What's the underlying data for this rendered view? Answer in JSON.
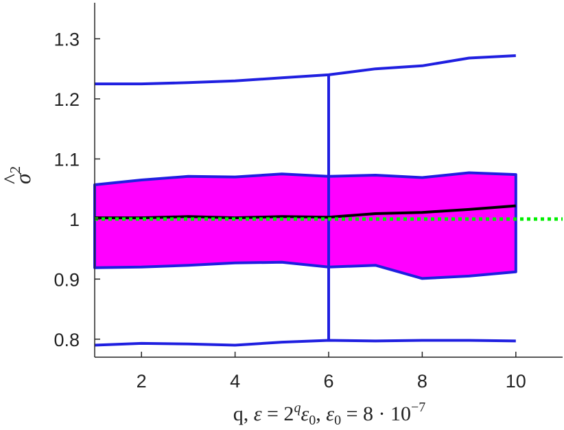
{
  "chart_data": {
    "type": "line",
    "title": "",
    "xlabel": "q, ε = 2^q ε0, ε0 = 8 · 10^-7",
    "xlabel_parts": {
      "pre": "q, ",
      "eps1": "ε",
      "eq1": " = 2",
      "q_sup": "q",
      "eps2": "ε",
      "sub0a": "0",
      "comma": ", ",
      "eps3": "ε",
      "sub0b": "0",
      "eq2": " = 8 · 10",
      "exp": "−7"
    },
    "ylabel": "σ̂²",
    "ylabel_parts": {
      "sigma": "σ",
      "hat": "^",
      "sup": "2"
    },
    "xlim": [
      1,
      11
    ],
    "ylim": [
      0.77,
      1.36
    ],
    "xticks": [
      2,
      4,
      6,
      8,
      10
    ],
    "xtick_labels": [
      "2",
      "4",
      "6",
      "8",
      "10"
    ],
    "yticks": [
      0.8,
      0.9,
      1.0,
      1.1,
      1.2,
      1.3
    ],
    "ytick_labels": [
      "0.8",
      "0.9",
      "1",
      "1.1",
      "1.2",
      "1.3"
    ],
    "grid": false,
    "x": [
      1,
      2,
      3,
      4,
      5,
      6,
      7,
      8,
      9,
      10
    ],
    "series": [
      {
        "role": "max",
        "color": "#1f1fe0",
        "values": [
          1.225,
          1.225,
          1.227,
          1.23,
          1.235,
          1.24,
          1.25,
          1.255,
          1.268,
          1.272
        ]
      },
      {
        "role": "upper_band",
        "color": "#1f1fe0",
        "values": [
          1.057,
          1.065,
          1.071,
          1.07,
          1.075,
          1.071,
          1.073,
          1.069,
          1.077,
          1.074
        ]
      },
      {
        "role": "mean",
        "color": "#000000",
        "values": [
          1.002,
          1.002,
          1.004,
          1.002,
          1.004,
          1.003,
          1.009,
          1.011,
          1.016,
          1.022
        ]
      },
      {
        "role": "lower_band",
        "color": "#1f1fe0",
        "values": [
          0.919,
          0.92,
          0.923,
          0.927,
          0.928,
          0.92,
          0.923,
          0.901,
          0.905,
          0.912
        ]
      },
      {
        "role": "min",
        "color": "#1f1fe0",
        "values": [
          0.79,
          0.793,
          0.792,
          0.79,
          0.795,
          0.798,
          0.797,
          0.798,
          0.798,
          0.797
        ]
      }
    ],
    "band_fill": "#ff00ff",
    "vertical_whisker": {
      "x": 6,
      "y_from": 0.798,
      "y_to": 1.24,
      "color": "#1f1fe0"
    },
    "reference_line": {
      "y": 1.0,
      "color": "#00ee00",
      "style": "dotted"
    }
  }
}
